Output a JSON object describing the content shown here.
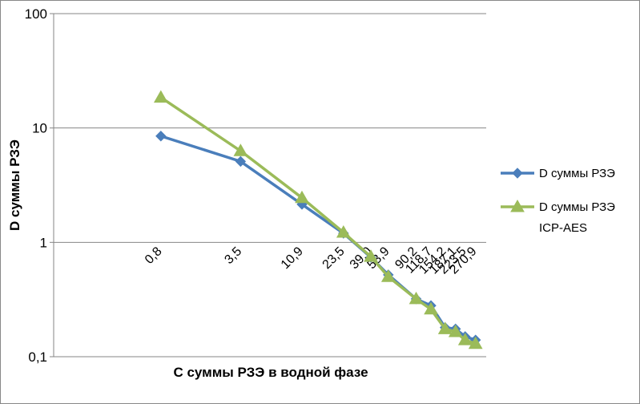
{
  "chart_data": {
    "type": "line",
    "title": "",
    "xlabel": "С суммы РЗЭ в водной фазе",
    "ylabel": "D суммы РЗЭ",
    "y_scale": "log",
    "ylim": [
      0.1,
      100
    ],
    "y_ticks": [
      "0,1",
      "1",
      "10",
      "100"
    ],
    "x": [
      0.8,
      3.5,
      10.9,
      23.5,
      39.0,
      53.9,
      90.2,
      118.7,
      154.2,
      187.1,
      223.5,
      270.9
    ],
    "categories": [
      "0,8",
      "3,5",
      "10,9",
      "23,5",
      "39,0",
      "53,9",
      "90,2",
      "118,7",
      "154,2",
      "187,1",
      "223,5",
      "270,9"
    ],
    "series": [
      {
        "name": "D суммы РЗЭ",
        "color": "#4a7ebb",
        "marker": "diamond",
        "values": [
          8.5,
          5.1,
          2.15,
          1.2,
          0.74,
          0.52,
          0.32,
          0.28,
          0.18,
          0.175,
          0.15,
          0.14
        ]
      },
      {
        "name": "D суммы РЗЭ ICP-AES",
        "legend_lines": [
          "D суммы РЗЭ",
          "ICP-AES"
        ],
        "color": "#9bbb59",
        "marker": "triangle",
        "values": [
          18.5,
          6.3,
          2.45,
          1.22,
          0.75,
          0.5,
          0.32,
          0.26,
          0.175,
          0.165,
          0.14,
          0.13
        ]
      }
    ],
    "grid": true,
    "legend_position": "right"
  }
}
